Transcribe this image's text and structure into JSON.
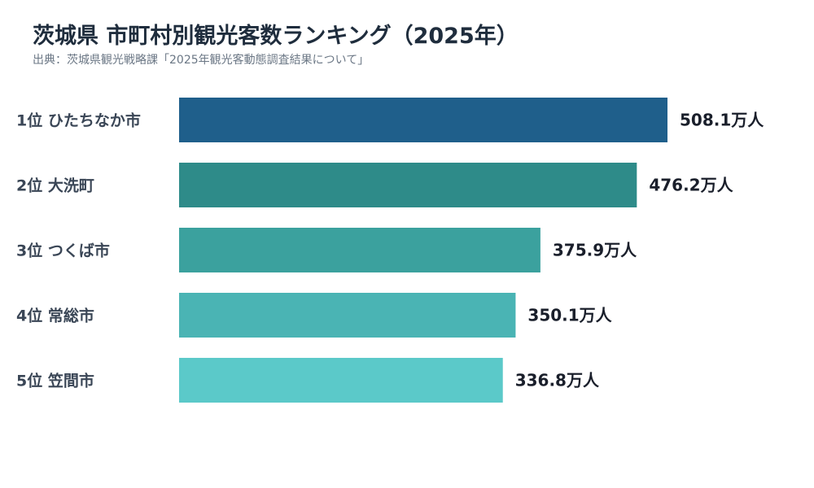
{
  "title": "茨城県 市町村別観光客数ランキング（2025年）",
  "subtitle": "出典：茨城県観光戦略課「2025年観光客動態調査結果について」",
  "chart_data": {
    "type": "bar",
    "orientation": "horizontal",
    "title": "茨城県 市町村別観光客数ランキング（2025年）",
    "categories": [
      "1位 ひたちなか市",
      "2位 大洗町",
      "3位 つくば市",
      "4位 常総市",
      "5位 笠間市"
    ],
    "values": [
      508.1,
      476.2,
      375.9,
      350.1,
      336.8
    ],
    "value_labels": [
      "508.1万人",
      "476.2万人",
      "375.9万人",
      "350.1万人",
      "336.8万人"
    ],
    "colors": [
      "#1f5f8b",
      "#2e8b89",
      "#3ba19e",
      "#4ab4b4",
      "#5bc9c9"
    ],
    "xlim": [
      0,
      508.1
    ],
    "grid": false,
    "legend": "none"
  }
}
